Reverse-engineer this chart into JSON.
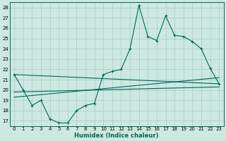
{
  "xlabel": "Humidex (Indice chaleur)",
  "background_color": "#cce8e0",
  "grid_color": "#a8ccc4",
  "line_color": "#006858",
  "xlim": [
    -0.5,
    23.5
  ],
  "ylim": [
    16.5,
    28.5
  ],
  "yticks": [
    17,
    18,
    19,
    20,
    21,
    22,
    23,
    24,
    25,
    26,
    27,
    28
  ],
  "xticks": [
    0,
    1,
    2,
    3,
    4,
    5,
    6,
    7,
    8,
    9,
    10,
    11,
    12,
    13,
    14,
    15,
    16,
    17,
    18,
    19,
    20,
    21,
    22,
    23
  ],
  "series1_x": [
    0,
    1,
    2,
    3,
    4,
    5,
    6,
    7,
    8,
    9,
    10,
    11,
    12,
    13,
    14,
    15,
    16,
    17,
    18,
    19,
    20,
    21,
    22,
    23
  ],
  "series1_y": [
    21.5,
    20.0,
    18.5,
    19.0,
    17.2,
    16.8,
    16.8,
    18.0,
    18.5,
    18.7,
    21.5,
    21.8,
    22.0,
    24.0,
    28.2,
    25.2,
    24.8,
    27.2,
    25.3,
    25.2,
    24.7,
    24.0,
    22.1,
    20.6
  ],
  "trend1_x": [
    0,
    23
  ],
  "trend1_y": [
    21.5,
    20.6
  ],
  "trend2_x": [
    0,
    23
  ],
  "trend2_y": [
    19.8,
    20.3
  ],
  "trend3_x": [
    0,
    23
  ],
  "trend3_y": [
    19.3,
    21.2
  ],
  "xlabel_fontsize": 6,
  "tick_fontsize": 5
}
